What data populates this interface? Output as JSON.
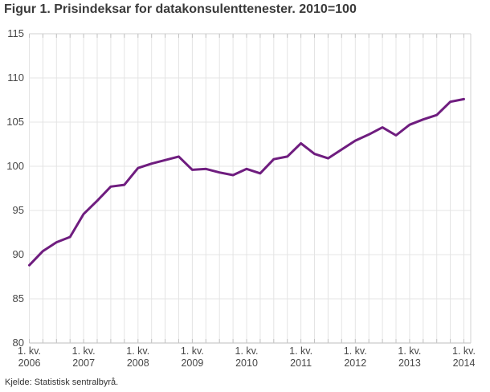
{
  "title": "Figur 1. Prisindeksar for datakonsulenttenester. 2010=100",
  "source": "Kjelde: Statistisk sentralbyrå.",
  "colors": {
    "line": "#6f1d7f",
    "gridline": "#e4e4e4",
    "axis_line": "#bcbcbc",
    "frame_line": "#d2d2d2",
    "tick_mark": "#c2c2c2",
    "title_text": "#3a3a3a",
    "axis_text": "#474747",
    "background": "#ffffff"
  },
  "chart_data": {
    "type": "line",
    "title": "Figur 1. Prisindeksar for datakonsulenttenester. 2010=100",
    "xlabel": "",
    "ylabel": "",
    "ylim": [
      80,
      115
    ],
    "yticks": [
      80,
      85,
      90,
      95,
      100,
      105,
      110,
      115
    ],
    "grid": true,
    "legend": "none",
    "x_tick_labels": [
      {
        "line1": "1. kv.",
        "line2": "2006"
      },
      {
        "line1": "1. kv.",
        "line2": "2007"
      },
      {
        "line1": "1. kv.",
        "line2": "2008"
      },
      {
        "line1": "1. kv.",
        "line2": "2009"
      },
      {
        "line1": "1. kv.",
        "line2": "2010"
      },
      {
        "line1": "1. kv.",
        "line2": "2011"
      },
      {
        "line1": "1. kv.",
        "line2": "2012"
      },
      {
        "line1": "1. kv.",
        "line2": "2013"
      },
      {
        "line1": "1. kv.",
        "line2": "2014"
      }
    ],
    "categories": [
      "1. kv. 2006",
      "2. kv. 2006",
      "3. kv. 2006",
      "4. kv. 2006",
      "1. kv. 2007",
      "2. kv. 2007",
      "3. kv. 2007",
      "4. kv. 2007",
      "1. kv. 2008",
      "2. kv. 2008",
      "3. kv. 2008",
      "4. kv. 2008",
      "1. kv. 2009",
      "2. kv. 2009",
      "3. kv. 2009",
      "4. kv. 2009",
      "1. kv. 2010",
      "2. kv. 2010",
      "3. kv. 2010",
      "4. kv. 2010",
      "1. kv. 2011",
      "2. kv. 2011",
      "3. kv. 2011",
      "4. kv. 2011",
      "1. kv. 2012",
      "2. kv. 2012",
      "3. kv. 2012",
      "4. kv. 2012",
      "1. kv. 2013",
      "2. kv. 2013",
      "3. kv. 2013",
      "4. kv. 2013",
      "1. kv. 2014"
    ],
    "series": [
      {
        "name": "Prisindeksar for datakonsulenttenester (2010=100)",
        "color": "#6f1d7f",
        "values": [
          88.8,
          90.4,
          91.4,
          92.0,
          94.6,
          96.1,
          97.7,
          97.9,
          99.8,
          100.3,
          100.7,
          101.1,
          99.6,
          99.7,
          99.3,
          99.0,
          99.7,
          99.2,
          100.8,
          101.1,
          102.6,
          101.4,
          100.9,
          101.9,
          102.9,
          103.6,
          104.4,
          103.5,
          104.7,
          105.3,
          105.8,
          107.3,
          107.6
        ]
      }
    ]
  }
}
